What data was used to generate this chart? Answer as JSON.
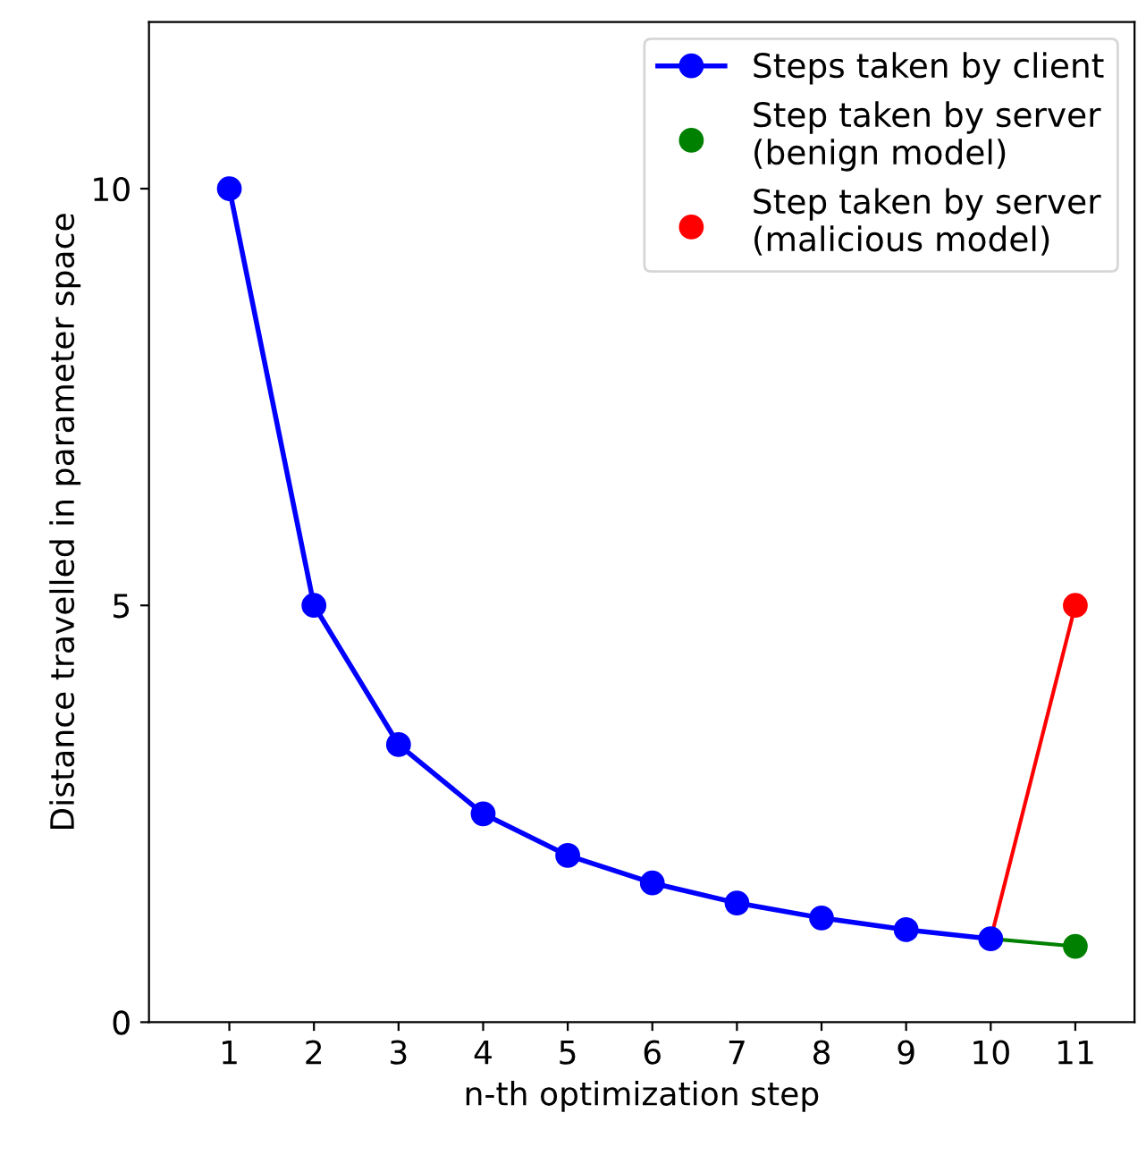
{
  "chart_data": {
    "type": "line",
    "xlabel": "n-th optimization step",
    "ylabel": "Distance travelled in parameter space",
    "xlim": [
      0.05,
      11.7
    ],
    "xticks": [
      1,
      2,
      3,
      4,
      5,
      6,
      7,
      8,
      9,
      10,
      11
    ],
    "ylim": [
      0,
      12
    ],
    "yticks": [
      0,
      5,
      10
    ],
    "grid": false,
    "legend": "top right",
    "marker": "circle",
    "line_style": "solid",
    "series": [
      {
        "color": "#008000",
        "x": [
          10,
          11
        ],
        "values": [
          1.0,
          0.91
        ],
        "marker": "none"
      },
      {
        "color": "#ff0000",
        "x": [
          10,
          11
        ],
        "values": [
          1.0,
          5.0
        ],
        "marker": "none"
      },
      {
        "name": "Steps taken by client",
        "color": "#0000ff",
        "x": [
          1,
          2,
          3,
          4,
          5,
          6,
          7,
          8,
          9,
          10
        ],
        "values": [
          10.0,
          5.0,
          3.33,
          2.5,
          2.0,
          1.67,
          1.43,
          1.25,
          1.11,
          1.0
        ]
      },
      {
        "type": "scatter",
        "name": "Step taken by server\n(benign model)",
        "color": "#008000",
        "x": [
          11
        ],
        "values": [
          0.91
        ]
      },
      {
        "type": "scatter",
        "name": "Step taken by server\n(malicious model)",
        "color": "#ff0000",
        "x": [
          11
        ],
        "values": [
          5.0
        ]
      }
    ]
  }
}
